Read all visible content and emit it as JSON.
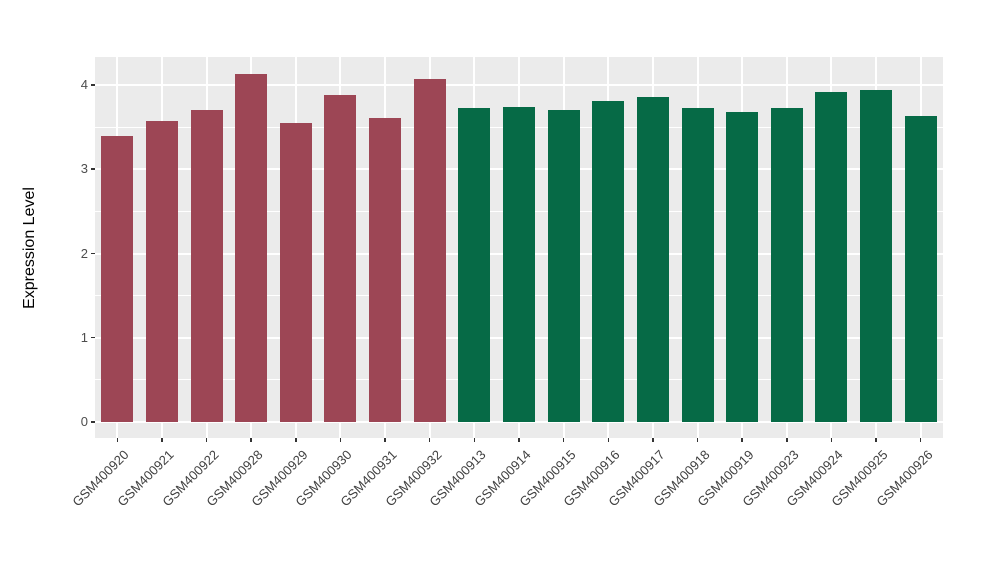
{
  "chart_data": {
    "type": "bar",
    "title": "",
    "xlabel": "",
    "ylabel": "Expression Level",
    "categories": [
      "GSM400920",
      "GSM400921",
      "GSM400922",
      "GSM400928",
      "GSM400929",
      "GSM400930",
      "GSM400931",
      "GSM400932",
      "GSM400913",
      "GSM400914",
      "GSM400915",
      "GSM400916",
      "GSM400917",
      "GSM400918",
      "GSM400919",
      "GSM400923",
      "GSM400924",
      "GSM400925",
      "GSM400926"
    ],
    "values": [
      3.39,
      3.57,
      3.7,
      4.13,
      3.55,
      3.88,
      3.61,
      4.07,
      3.73,
      3.74,
      3.7,
      3.81,
      3.86,
      3.73,
      3.68,
      3.73,
      3.92,
      3.94,
      3.63
    ],
    "bar_groups": [
      0,
      0,
      0,
      0,
      0,
      0,
      0,
      0,
      1,
      1,
      1,
      1,
      1,
      1,
      1,
      1,
      1,
      1,
      1
    ],
    "group_colors": [
      "#9D4655",
      "#066A46"
    ],
    "yticks": [
      0,
      1,
      2,
      3,
      4
    ],
    "yticks_minor": [
      0.5,
      1.5,
      2.5,
      3.5
    ],
    "ylim": [
      0,
      4.35
    ],
    "grid": true,
    "legend": false,
    "panel_bg": "#EBEBEB",
    "grid_color": "#FFFFFF",
    "tick_color": "#333333",
    "axis_text_color": "#4D4D4D"
  }
}
